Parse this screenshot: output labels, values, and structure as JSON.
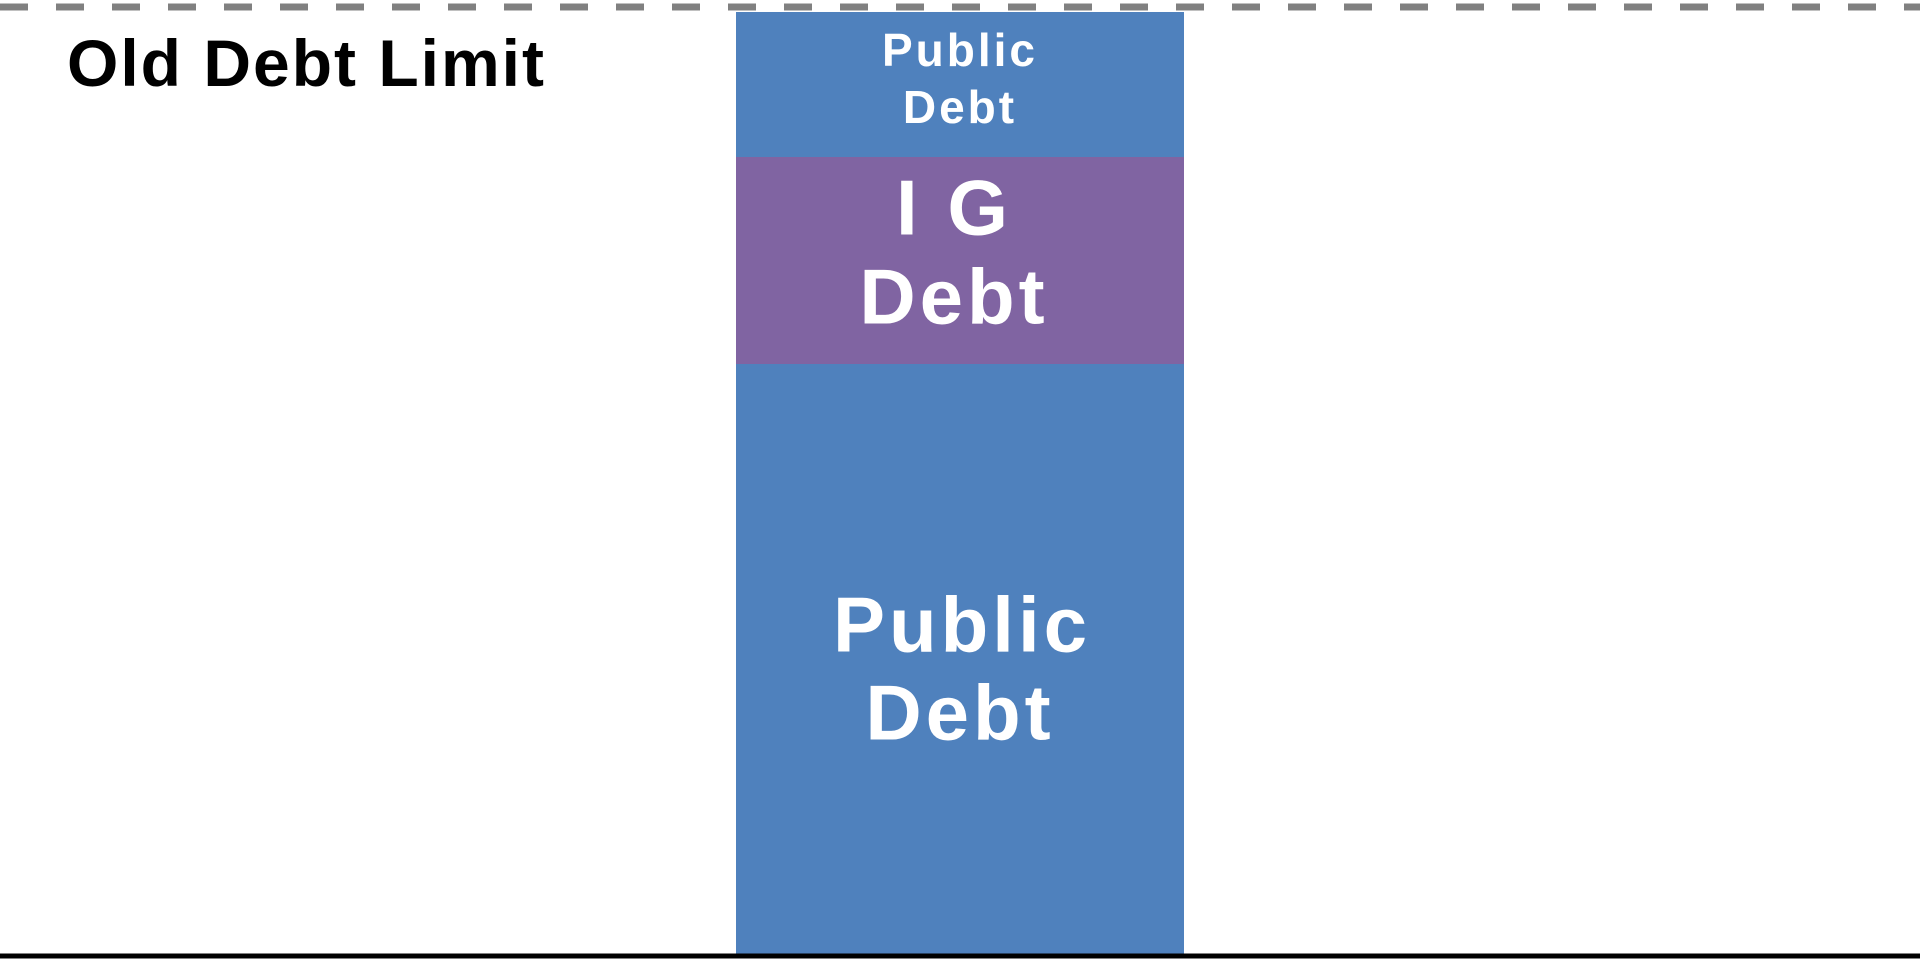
{
  "limit_label": "Old Debt Limit",
  "segments": [
    {
      "label_lines": [
        "Public",
        "Debt"
      ]
    },
    {
      "label_lines": [
        "I G",
        "Debt"
      ]
    },
    {
      "label_lines": [
        "Public",
        "Debt"
      ]
    }
  ]
}
